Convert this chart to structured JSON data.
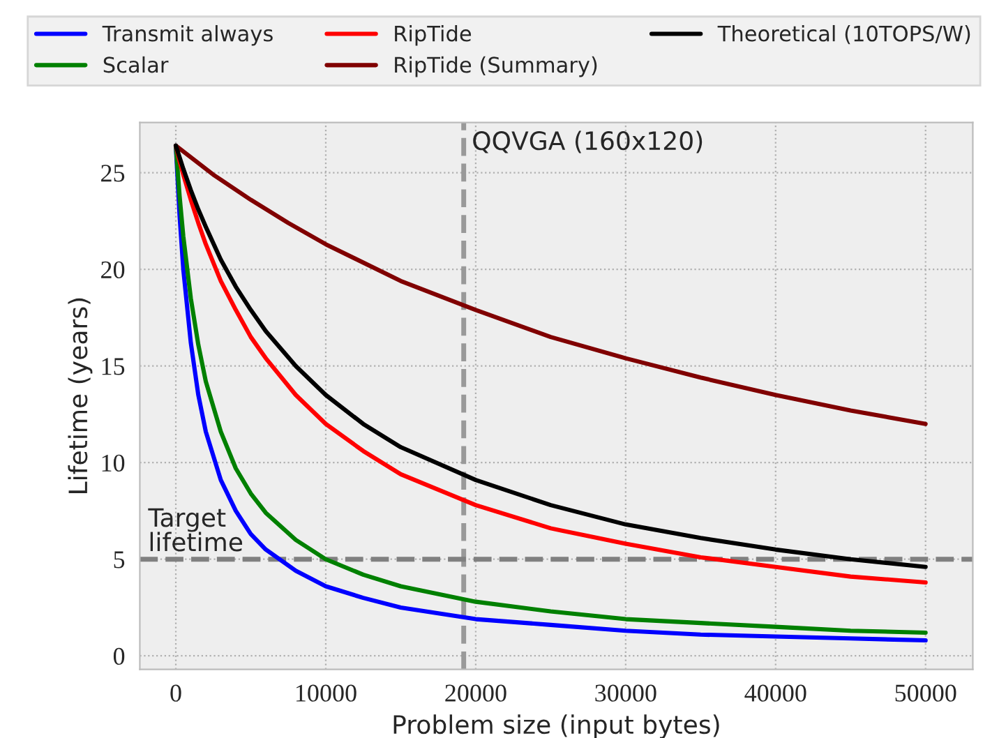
{
  "chart_data": {
    "type": "line",
    "xlabel": "Problem size (input bytes)",
    "ylabel": "Lifetime (years)",
    "series": [
      {
        "name": "Transmit always",
        "color": "#0000ff",
        "x": [
          0,
          250,
          500,
          1000,
          1500,
          2000,
          3000,
          4000,
          5000,
          6000,
          8000,
          10000,
          12500,
          15000,
          20000,
          25000,
          30000,
          35000,
          40000,
          45000,
          50000
        ],
        "values": [
          26.4,
          22.8,
          20.0,
          16.2,
          13.5,
          11.6,
          9.1,
          7.5,
          6.3,
          5.5,
          4.4,
          3.6,
          3.0,
          2.5,
          1.9,
          1.6,
          1.3,
          1.1,
          1.0,
          0.9,
          0.8
        ]
      },
      {
        "name": "Scalar",
        "color": "#008000",
        "x": [
          0,
          250,
          500,
          1000,
          1500,
          2000,
          3000,
          4000,
          5000,
          6000,
          8000,
          10000,
          12500,
          15000,
          20000,
          25000,
          30000,
          35000,
          40000,
          45000,
          50000
        ],
        "values": [
          26.4,
          23.8,
          21.7,
          18.5,
          16.1,
          14.2,
          11.6,
          9.7,
          8.4,
          7.4,
          6.0,
          5.0,
          4.2,
          3.6,
          2.8,
          2.3,
          1.9,
          1.7,
          1.5,
          1.3,
          1.2
        ]
      },
      {
        "name": "RipTide",
        "color": "#ff0000",
        "x": [
          0,
          250,
          500,
          1000,
          1500,
          2000,
          3000,
          4000,
          5000,
          6000,
          8000,
          10000,
          12500,
          15000,
          20000,
          25000,
          30000,
          35000,
          40000,
          45000,
          50000
        ],
        "values": [
          26.4,
          25.6,
          24.9,
          23.6,
          22.4,
          21.3,
          19.4,
          17.9,
          16.5,
          15.4,
          13.5,
          12.0,
          10.6,
          9.4,
          7.8,
          6.6,
          5.8,
          5.1,
          4.6,
          4.1,
          3.8
        ]
      },
      {
        "name": "RipTide (Summary)",
        "color": "#800000",
        "x": [
          0,
          2500,
          5000,
          7500,
          10000,
          15000,
          20000,
          25000,
          30000,
          35000,
          40000,
          45000,
          50000
        ],
        "values": [
          26.4,
          24.9,
          23.6,
          22.4,
          21.3,
          19.4,
          17.9,
          16.5,
          15.4,
          14.4,
          13.5,
          12.7,
          12.0
        ]
      },
      {
        "name": "Theoretical (10TOPS/W)",
        "color": "#000000",
        "x": [
          0,
          250,
          500,
          1000,
          1500,
          2000,
          3000,
          4000,
          5000,
          6000,
          8000,
          10000,
          12500,
          15000,
          20000,
          25000,
          30000,
          35000,
          40000,
          45000,
          50000
        ],
        "values": [
          26.4,
          25.8,
          25.2,
          24.1,
          23.1,
          22.2,
          20.5,
          19.1,
          17.9,
          16.8,
          15.0,
          13.5,
          12.0,
          10.8,
          9.1,
          7.8,
          6.8,
          6.1,
          5.5,
          5.0,
          4.6
        ]
      }
    ],
    "ref_lines": [
      {
        "axis": "x",
        "value": 19200,
        "label": "QQVGA (160x120)",
        "color": "#999999",
        "line_style": "dashed"
      },
      {
        "axis": "y",
        "value": 5,
        "label": "Target\nlifetime",
        "color": "#808080",
        "line_style": "dashed"
      }
    ],
    "xlim": [
      -2400,
      53150
    ],
    "xticks": [
      0,
      10000,
      20000,
      30000,
      40000,
      50000
    ],
    "ylim": [
      -0.7,
      27.6
    ],
    "yticks": [
      0,
      5,
      10,
      15,
      20,
      25
    ],
    "grid": true,
    "legend": "top",
    "marker": "none",
    "line_style": "solid"
  }
}
